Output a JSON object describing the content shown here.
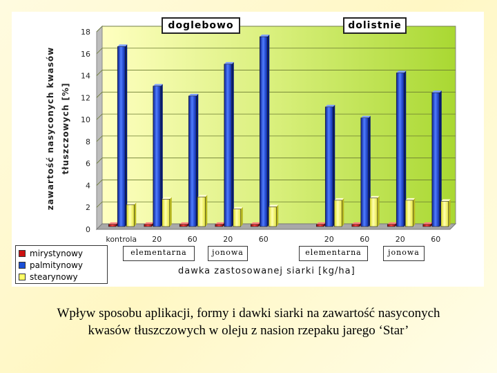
{
  "chart_data": {
    "type": "bar",
    "ylabel_line1": "zawartość nasyconych kwasów",
    "ylabel_line2": "tłuszczowych [%]",
    "xlabel": "dawka zastosowanej siarki [kg/ha]",
    "ylim": [
      0,
      18
    ],
    "yticks": [
      0,
      2,
      4,
      6,
      8,
      10,
      12,
      14,
      16,
      18
    ],
    "categories": [
      "kontrola",
      "20",
      "60",
      "20",
      "60",
      "20",
      "60",
      "20",
      "60"
    ],
    "category_groups": [
      {
        "app": 0,
        "form": null
      },
      {
        "app": 0,
        "form": 0
      },
      {
        "app": 0,
        "form": 0
      },
      {
        "app": 0,
        "form": 1
      },
      {
        "app": 0,
        "form": 1
      },
      {
        "app": 1,
        "form": 2
      },
      {
        "app": 1,
        "form": 2
      },
      {
        "app": 1,
        "form": 3
      },
      {
        "app": 1,
        "form": 3
      }
    ],
    "application_labels": [
      "doglebowo",
      "dolistnie"
    ],
    "form_labels": [
      "elementarna",
      "jonowa",
      "elementarna",
      "jonowa"
    ],
    "series": [
      {
        "name": "mirystynowy",
        "color": "#cc1111",
        "values": [
          0.2,
          0.2,
          0.2,
          0.2,
          0.2,
          0.2,
          0.2,
          0.2,
          0.2
        ]
      },
      {
        "name": "palmitynowy",
        "color": "#1a4fd6",
        "values": [
          16.4,
          12.8,
          11.9,
          14.8,
          17.3,
          10.9,
          9.9,
          14.0,
          12.2
        ]
      },
      {
        "name": "stearynowy",
        "color": "#ffff66",
        "values": [
          2.0,
          2.5,
          2.7,
          1.6,
          1.8,
          2.4,
          2.6,
          2.4,
          2.3
        ]
      }
    ],
    "grid": true,
    "legend_position": "bottom-left"
  },
  "caption_line1": "Wpływ sposobu aplikacji, formy i dawki siarki na zawartość nasyconych",
  "caption_line2": "kwasów tłuszczowych  w oleju z nasion rzepaku jarego ‘Star’"
}
